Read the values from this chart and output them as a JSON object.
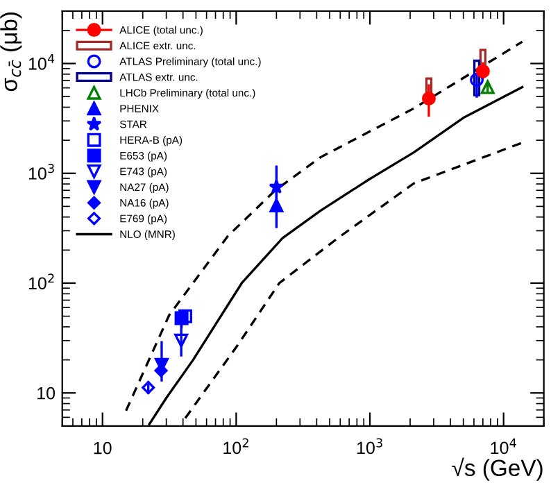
{
  "chart_data": {
    "type": "scatter",
    "xlabel": "√s (GeV)",
    "ylabel": "σ$_{cc̄}$ (μb)",
    "log": "xy",
    "xlim": [
      5,
      20000
    ],
    "ylim": [
      5,
      30000
    ],
    "xticks": [
      10,
      {
        "value": 100,
        "label": "10$^{2}$"
      },
      {
        "value": 1000,
        "label": "10$^{3}$"
      },
      {
        "value": 10000,
        "label": "10$^{4}$"
      }
    ],
    "yticks": [
      10,
      {
        "value": 100,
        "label": "10$^{2}$"
      },
      {
        "value": 1000,
        "label": "10$^{3}$"
      },
      {
        "value": 10000,
        "label": "10$^{4}$"
      }
    ],
    "legend": "top left",
    "grid": false,
    "series": [
      {
        "name": "ALICE (total unc.)",
        "marker": "circle",
        "color": "#ff0000",
        "x": [
          2760,
          7000
        ],
        "values": [
          4800,
          8500
        ],
        "errors": [
          [
            3350,
            6300
          ],
          [
            7400,
            10000
          ]
        ]
      },
      {
        "name": "ALICE extr. unc.",
        "type": "bar",
        "color": "#a52a2a",
        "x": [
          2760,
          7000
        ],
        "base": [
          4600,
          8000
        ],
        "values": [
          2700,
          5300
        ]
      },
      {
        "name": "ATLAS Preliminary (total unc.)",
        "marker": "circle-open",
        "color": "#0000ff",
        "x": [
          6300
        ],
        "values": [
          7100
        ],
        "errors": [
          [
            5000,
            8000
          ]
        ]
      },
      {
        "name": "ATLAS extr. unc.",
        "type": "bar",
        "color": "#00008b",
        "x": [
          6300
        ],
        "base": [
          5150
        ],
        "values": [
          5450
        ]
      },
      {
        "name": "LHCb Preliminary (total unc.)",
        "marker": "triangle-open",
        "color": "#008000",
        "x": [
          7600
        ],
        "values": [
          6100
        ],
        "errors": [
          [
            5500,
            6800
          ]
        ]
      },
      {
        "name": "PHENIX",
        "marker": "triangle",
        "color": "#0000ff",
        "x": [
          200
        ],
        "values": [
          510
        ],
        "errors": [
          [
            325,
            820
          ]
        ]
      },
      {
        "name": "STAR",
        "marker": "star",
        "color": "#0000ff",
        "x": [
          200
        ],
        "values": [
          750
        ],
        "errors": [
          [
            560,
            1150
          ]
        ]
      },
      {
        "name": "HERA-B (pA)",
        "marker": "square-open",
        "color": "#0000ff",
        "x": [
          41.6
        ],
        "values": [
          50
        ]
      },
      {
        "name": "E653 (pA)",
        "marker": "square",
        "color": "#0000ff",
        "x": [
          39
        ],
        "values": [
          48
        ],
        "errors": [
          [
            40,
            56
          ]
        ]
      },
      {
        "name": "E743 (pA)",
        "marker": "triangle-down-open",
        "color": "#0000ff",
        "x": [
          38.8
        ],
        "values": [
          30
        ],
        "errors": [
          [
            22,
            41
          ]
        ]
      },
      {
        "name": "NA27 (pA)",
        "marker": "triangle-down",
        "color": "#0000ff",
        "x": [
          27.7
        ],
        "values": [
          18
        ],
        "errors": [
          [
            13,
            29
          ]
        ]
      },
      {
        "name": "NA16 (pA)",
        "marker": "diamond",
        "color": "#0000ff",
        "x": [
          27.4
        ],
        "values": [
          16
        ]
      },
      {
        "name": "E769 (pA)",
        "marker": "diamond-open",
        "color": "#0000ff",
        "x": [
          22
        ],
        "values": [
          11.2
        ],
        "errors": [
          [
            10,
            12.5
          ]
        ]
      },
      {
        "name": "NLO (MNR)",
        "type": "line",
        "line_style": "solid",
        "color": "#000000",
        "x": [
          22.4,
          30,
          47.6,
          110,
          222,
          427,
          1000,
          2130,
          5000,
          13800
        ],
        "values": [
          5.2,
          9,
          20,
          100,
          257,
          457,
          890,
          1550,
          3200,
          6100
        ]
      },
      {
        "type": "line",
        "line_style": "dashed",
        "color": "#000000",
        "x": [
          15,
          31.5,
          87,
          196,
          427,
          2130,
          13800
        ],
        "values": [
          6.9,
          51,
          270,
          700,
          1400,
          3900,
          15800
        ]
      },
      {
        "type": "line",
        "line_style": "dashed",
        "color": "#000000",
        "x": [
          41.6,
          102,
          210,
          575,
          2130,
          13800
        ],
        "values": [
          5.9,
          27,
          100,
          257,
          810,
          1900
        ]
      }
    ]
  }
}
